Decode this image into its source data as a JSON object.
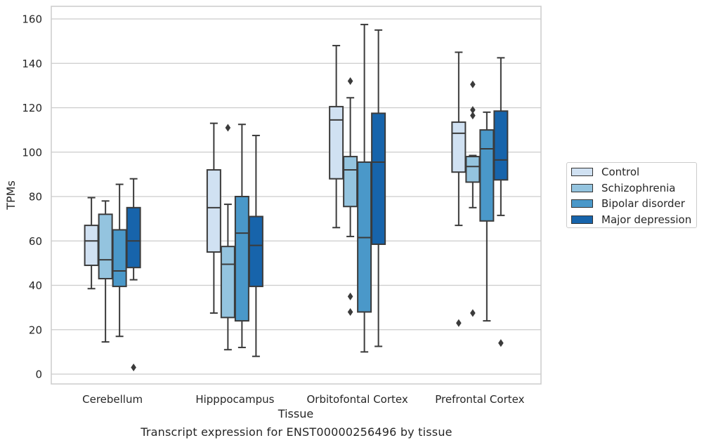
{
  "chart_data": {
    "type": "box",
    "xlabel": "Tissue",
    "ylabel": "TPMs",
    "caption": "Transcript expression for ENST00000256496 by tissue",
    "ylim": [
      -5,
      165
    ],
    "yticks": [
      0,
      20,
      40,
      60,
      80,
      100,
      120,
      140,
      160
    ],
    "grid": "horizontal",
    "legend_position": "right",
    "categories": [
      "Cerebellum",
      "Hipppocampus",
      "Orbitofontal Cortex",
      "Prefrontal Cortex"
    ],
    "series": [
      {
        "name": "Control",
        "color": "#d0e1f2",
        "boxes": [
          {
            "whisker_low": 38.5,
            "q1": 49,
            "median": 60,
            "q3": 67,
            "whisker_high": 79.5,
            "outliers": []
          },
          {
            "whisker_low": 27.5,
            "q1": 55,
            "median": 75,
            "q3": 92,
            "whisker_high": 113,
            "outliers": []
          },
          {
            "whisker_low": 66,
            "q1": 88,
            "median": 114.5,
            "q3": 120.5,
            "whisker_high": 148,
            "outliers": []
          },
          {
            "whisker_low": 67,
            "q1": 91,
            "median": 108.5,
            "q3": 113.5,
            "whisker_high": 145,
            "outliers": [
              23
            ]
          }
        ]
      },
      {
        "name": "Schizophrenia",
        "color": "#94c4df",
        "boxes": [
          {
            "whisker_low": 14.5,
            "q1": 43,
            "median": 51.5,
            "q3": 72,
            "whisker_high": 78,
            "outliers": []
          },
          {
            "whisker_low": 11,
            "q1": 25.5,
            "median": 49.5,
            "q3": 57.5,
            "whisker_high": 76.5,
            "outliers": [
              111
            ]
          },
          {
            "whisker_low": 62,
            "q1": 75.5,
            "median": 92,
            "q3": 98,
            "whisker_high": 124.5,
            "outliers": [
              132,
              35,
              28
            ]
          },
          {
            "whisker_low": 75,
            "q1": 86.5,
            "median": 93.5,
            "q3": 98,
            "whisker_high": 98.5,
            "outliers": [
              130.5,
              119,
              116.5,
              27.5
            ]
          }
        ]
      },
      {
        "name": "Bipolar disorder",
        "color": "#4a98c9",
        "boxes": [
          {
            "whisker_low": 17,
            "q1": 39.5,
            "median": 46.5,
            "q3": 65,
            "whisker_high": 85.5,
            "outliers": []
          },
          {
            "whisker_low": 12,
            "q1": 24,
            "median": 63.5,
            "q3": 80,
            "whisker_high": 112.5,
            "outliers": []
          },
          {
            "whisker_low": 10,
            "q1": 28,
            "median": 61.5,
            "q3": 95.5,
            "whisker_high": 157.5,
            "outliers": []
          },
          {
            "whisker_low": 24,
            "q1": 69,
            "median": 101.5,
            "q3": 110,
            "whisker_high": 118,
            "outliers": []
          }
        ]
      },
      {
        "name": "Major depression",
        "color": "#1764ab",
        "boxes": [
          {
            "whisker_low": 42.5,
            "q1": 48,
            "median": 60,
            "q3": 75,
            "whisker_high": 88,
            "outliers": [
              3
            ]
          },
          {
            "whisker_low": 8,
            "q1": 39.5,
            "median": 58,
            "q3": 71,
            "whisker_high": 107.5,
            "outliers": []
          },
          {
            "whisker_low": 12.5,
            "q1": 58.5,
            "median": 95.5,
            "q3": 117.5,
            "whisker_high": 155,
            "outliers": []
          },
          {
            "whisker_low": 71.5,
            "q1": 87.5,
            "median": 96.5,
            "q3": 118.5,
            "whisker_high": 142.5,
            "outliers": [
              14
            ]
          }
        ]
      }
    ]
  }
}
